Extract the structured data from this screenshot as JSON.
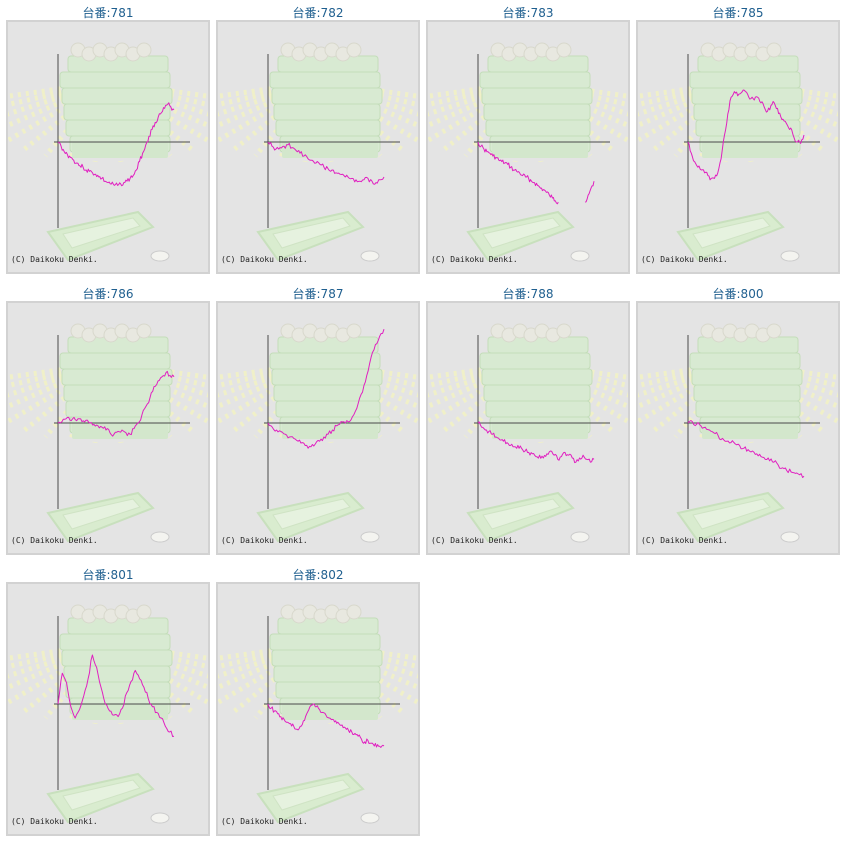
{
  "copyright": "(C) Daikoku Denki.",
  "colors": {
    "line": "#e020c0",
    "axis": "#4a4a4a",
    "title": "#1f5f8f",
    "background": "#e4e4e4"
  },
  "chart_data": [
    {
      "type": "line",
      "title": "台番:781",
      "values": [
        0,
        -3,
        -7,
        -9,
        -11,
        -13,
        -15,
        -17,
        -18,
        -20,
        -21,
        -22,
        -23,
        -25,
        -26,
        -28,
        -29,
        -30,
        -31,
        -31,
        -30,
        -29,
        -28,
        -26,
        -24,
        -20,
        -14,
        -8,
        -2,
        4,
        9,
        14,
        18,
        21,
        24,
        27,
        25,
        23
      ]
    },
    {
      "type": "line",
      "title": "台番:782",
      "values": [
        0,
        -3,
        -5,
        -4,
        -3,
        -2,
        -4,
        -6,
        -8,
        -10,
        -12,
        -13,
        -15,
        -16,
        -18,
        -19,
        -20,
        -22,
        -23,
        -24,
        -25,
        -26,
        -27,
        -28,
        -27,
        -26,
        -28,
        -29,
        -27,
        -25
      ]
    },
    {
      "type": "line",
      "title": "台番:783",
      "values": [
        0,
        -3,
        -5,
        -7,
        -8,
        -10,
        -11,
        -13,
        -14,
        -15,
        -16,
        -18,
        -20,
        -21,
        -22,
        -24,
        -25,
        -26,
        -28,
        -29,
        -31,
        -33,
        -34,
        -36,
        -38,
        -40,
        -42,
        -43,
        null,
        null,
        null,
        null,
        null,
        null,
        null,
        null,
        -43,
        -38,
        -33,
        -28
      ]
    },
    {
      "type": "line",
      "title": "台番:785",
      "values": [
        0,
        -8,
        -14,
        -18,
        -20,
        -22,
        -24,
        -26,
        -26,
        -22,
        -12,
        5,
        20,
        32,
        36,
        33,
        35,
        37,
        34,
        31,
        30,
        32,
        28,
        25,
        22,
        26,
        28,
        24,
        18,
        15,
        12,
        10,
        3,
        0,
        -1,
        5
      ]
    },
    {
      "type": "line",
      "title": "台番:786",
      "values": [
        0,
        1,
        3,
        2,
        4,
        3,
        1,
        2,
        0,
        -1,
        -2,
        -3,
        -5,
        -7,
        -8,
        -6,
        -5,
        -7,
        -8,
        -4,
        0,
        6,
        12,
        18,
        26,
        30,
        33,
        36,
        34,
        33
      ]
    },
    {
      "type": "line",
      "title": "台番:787",
      "values": [
        0,
        -3,
        -5,
        -6,
        -8,
        -10,
        -11,
        -13,
        -14,
        -16,
        -17,
        -15,
        -13,
        -10,
        -8,
        -5,
        -2,
        1,
        0,
        1,
        6,
        14,
        22,
        34,
        47,
        56,
        62,
        67
      ]
    },
    {
      "type": "line",
      "title": "台番:788",
      "values": [
        0,
        -3,
        -5,
        -6,
        -8,
        -10,
        -12,
        -13,
        -14,
        -16,
        -17,
        -16,
        -18,
        -20,
        -21,
        -22,
        -24,
        -23,
        -25,
        -22,
        -20,
        -23,
        -26,
        -24,
        -21,
        -23,
        -25,
        -28,
        -25,
        -23,
        -26,
        -28,
        -26
      ]
    },
    {
      "type": "line",
      "title": "台番:800",
      "values": [
        0,
        1,
        -1,
        -2,
        -3,
        -5,
        -7,
        -9,
        -11,
        -13,
        -14,
        -15,
        -16,
        -18,
        -19,
        -20,
        -22,
        -24,
        -26,
        -27,
        -28,
        -30,
        -32,
        -34,
        -35,
        -36,
        -37,
        -38
      ]
    },
    {
      "type": "line",
      "title": "台番:801",
      "values": [
        0,
        22,
        15,
        -2,
        -10,
        -4,
        6,
        18,
        35,
        26,
        12,
        0,
        -5,
        -8,
        -9,
        -3,
        8,
        16,
        24,
        18,
        12,
        4,
        -2,
        -6,
        -10,
        -16,
        -20,
        -23
      ]
    },
    {
      "type": "line",
      "title": "台番:802",
      "values": [
        0,
        -3,
        -5,
        -7,
        -9,
        -11,
        -13,
        -14,
        -16,
        -18,
        -16,
        -12,
        -7,
        -2,
        0,
        -2,
        -4,
        -6,
        -8,
        -10,
        -11,
        -12,
        -14,
        -15,
        -17,
        -19,
        -20,
        -21,
        -23,
        -25,
        -27,
        -26,
        -28,
        -30,
        -29,
        -31,
        -30
      ]
    }
  ]
}
